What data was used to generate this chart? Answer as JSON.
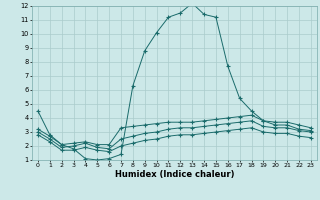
{
  "title": "",
  "xlabel": "Humidex (Indice chaleur)",
  "ylabel": "",
  "bg_color": "#cce8e8",
  "grid_color": "#aacccc",
  "line_color": "#1a6b6b",
  "xlim": [
    -0.5,
    23.5
  ],
  "ylim": [
    1,
    12
  ],
  "xticks": [
    0,
    1,
    2,
    3,
    4,
    5,
    6,
    7,
    8,
    9,
    10,
    11,
    12,
    13,
    14,
    15,
    16,
    17,
    18,
    19,
    20,
    21,
    22,
    23
  ],
  "yticks": [
    1,
    2,
    3,
    4,
    5,
    6,
    7,
    8,
    9,
    10,
    11,
    12
  ],
  "line1_x": [
    0,
    1,
    2,
    3,
    4,
    5,
    6,
    7,
    8,
    9,
    10,
    11,
    12,
    13,
    14,
    15,
    16,
    17,
    18,
    19,
    20,
    21,
    22,
    23
  ],
  "line1_y": [
    4.5,
    2.8,
    2.1,
    1.8,
    1.1,
    1.0,
    1.1,
    1.4,
    6.3,
    8.8,
    10.1,
    11.2,
    11.5,
    12.2,
    11.4,
    11.2,
    7.7,
    5.4,
    4.5,
    3.8,
    3.5,
    3.5,
    3.2,
    3.1
  ],
  "line2_x": [
    0,
    1,
    2,
    3,
    4,
    5,
    6,
    7,
    8,
    9,
    10,
    11,
    12,
    13,
    14,
    15,
    16,
    17,
    18,
    19,
    20,
    21,
    22,
    23
  ],
  "line2_y": [
    3.2,
    2.7,
    2.1,
    2.2,
    2.3,
    2.1,
    2.1,
    3.3,
    3.4,
    3.5,
    3.6,
    3.7,
    3.7,
    3.7,
    3.8,
    3.9,
    4.0,
    4.1,
    4.2,
    3.8,
    3.7,
    3.7,
    3.5,
    3.3
  ],
  "line3_x": [
    0,
    1,
    2,
    3,
    4,
    5,
    6,
    7,
    8,
    9,
    10,
    11,
    12,
    13,
    14,
    15,
    16,
    17,
    18,
    19,
    20,
    21,
    22,
    23
  ],
  "line3_y": [
    3.0,
    2.5,
    1.9,
    2.0,
    2.2,
    1.9,
    1.8,
    2.5,
    2.7,
    2.9,
    3.0,
    3.2,
    3.3,
    3.3,
    3.4,
    3.5,
    3.6,
    3.7,
    3.8,
    3.4,
    3.3,
    3.3,
    3.1,
    3.0
  ],
  "line4_x": [
    0,
    1,
    2,
    3,
    4,
    5,
    6,
    7,
    8,
    9,
    10,
    11,
    12,
    13,
    14,
    15,
    16,
    17,
    18,
    19,
    20,
    21,
    22,
    23
  ],
  "line4_y": [
    2.8,
    2.3,
    1.7,
    1.7,
    1.9,
    1.7,
    1.6,
    2.0,
    2.2,
    2.4,
    2.5,
    2.7,
    2.8,
    2.8,
    2.9,
    3.0,
    3.1,
    3.2,
    3.3,
    3.0,
    2.9,
    2.9,
    2.7,
    2.6
  ]
}
